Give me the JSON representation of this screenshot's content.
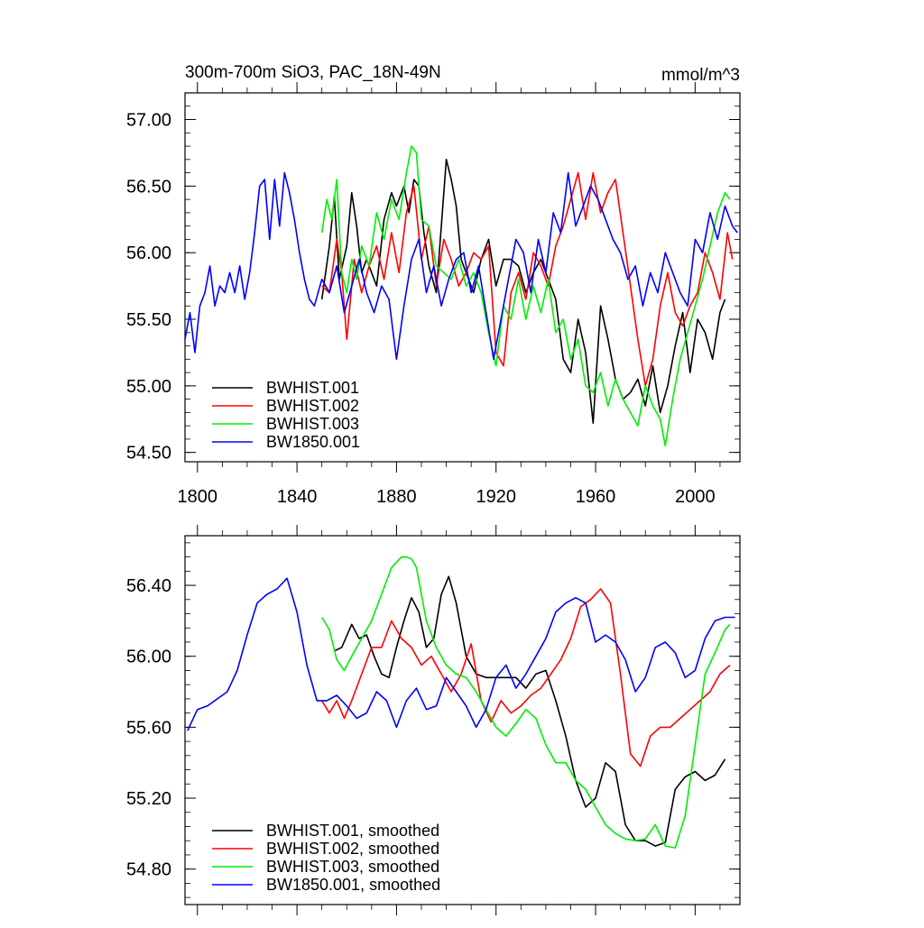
{
  "chart_data": [
    {
      "type": "line",
      "title": "300m-700m SiO3, PAC_18N-49N",
      "units": "mmol/m^3",
      "xlim": [
        1795,
        2018
      ],
      "ylim": [
        54.43,
        57.2
      ],
      "x_ticks": [
        "1800",
        "1840",
        "1880",
        "1920",
        "1960",
        "2000"
      ],
      "x_tick_values": [
        1800,
        1840,
        1880,
        1920,
        1960,
        2000
      ],
      "y_ticks": [
        "54.50",
        "55.00",
        "55.50",
        "56.00",
        "56.50",
        "57.00"
      ],
      "y_tick_values": [
        54.5,
        55.0,
        55.5,
        56.0,
        56.5,
        57.0
      ],
      "legend": {
        "position": "bottom-left",
        "entries": [
          "BWHIST.001",
          "BWHIST.002",
          "BWHIST.003",
          "BW1850.001"
        ]
      },
      "series": [
        {
          "name": "BWHIST.001",
          "color": "#000000",
          "x": [
            1850,
            1853,
            1855,
            1857,
            1860,
            1862,
            1864,
            1866,
            1868,
            1870,
            1872,
            1875,
            1878,
            1880,
            1883,
            1885,
            1887,
            1889,
            1891,
            1893,
            1896,
            1898,
            1900,
            1902,
            1904,
            1906,
            1908,
            1911,
            1914,
            1917,
            1920,
            1923,
            1926,
            1929,
            1932,
            1935,
            1938,
            1941,
            1944,
            1947,
            1950,
            1953,
            1956,
            1959,
            1962,
            1965,
            1968,
            1971,
            1974,
            1977,
            1980,
            1983,
            1986,
            1989,
            1992,
            1995,
            1998,
            2001,
            2004,
            2007,
            2010,
            2012
          ],
          "y": [
            55.65,
            56.05,
            56.42,
            55.8,
            56.05,
            56.45,
            56.2,
            55.85,
            55.95,
            55.85,
            55.75,
            56.25,
            56.45,
            56.35,
            56.5,
            56.3,
            56.55,
            56.5,
            56.15,
            55.9,
            55.7,
            56.2,
            56.7,
            56.55,
            56.35,
            55.95,
            55.85,
            55.7,
            55.95,
            56.1,
            55.75,
            55.95,
            55.95,
            55.9,
            55.7,
            55.85,
            55.95,
            55.8,
            55.65,
            55.2,
            55.1,
            55.5,
            55.25,
            54.72,
            55.6,
            55.35,
            55.05,
            54.9,
            54.95,
            55.05,
            54.85,
            55.15,
            54.8,
            55.0,
            55.3,
            55.55,
            55.1,
            55.5,
            55.4,
            55.2,
            55.55,
            55.65
          ]
        },
        {
          "name": "BWHIST.002",
          "color": "#ff0000",
          "x": [
            1850,
            1853,
            1856,
            1858,
            1860,
            1863,
            1866,
            1869,
            1872,
            1875,
            1878,
            1881,
            1884,
            1887,
            1890,
            1893,
            1896,
            1899,
            1902,
            1905,
            1908,
            1911,
            1914,
            1917,
            1920,
            1923,
            1926,
            1929,
            1932,
            1935,
            1938,
            1941,
            1944,
            1947,
            1950,
            1953,
            1956,
            1959,
            1962,
            1965,
            1968,
            1971,
            1974,
            1977,
            1980,
            1983,
            1986,
            1989,
            1992,
            1995,
            1998,
            2001,
            2004,
            2007,
            2010,
            2013,
            2015
          ],
          "y": [
            55.75,
            55.7,
            56.1,
            55.85,
            55.35,
            55.95,
            55.7,
            55.9,
            56.05,
            55.8,
            56.15,
            55.85,
            56.3,
            56.5,
            55.95,
            56.2,
            55.75,
            56.1,
            55.95,
            55.75,
            55.85,
            56.0,
            55.95,
            56.05,
            55.25,
            55.15,
            55.7,
            55.85,
            55.65,
            56.0,
            55.9,
            55.75,
            56.05,
            56.2,
            56.4,
            56.6,
            56.25,
            56.6,
            56.3,
            56.45,
            56.55,
            56.15,
            55.75,
            55.35,
            55.0,
            55.2,
            55.6,
            55.85,
            55.55,
            55.45,
            55.6,
            55.7,
            56.0,
            55.85,
            55.65,
            56.15,
            55.95
          ]
        },
        {
          "name": "BWHIST.003",
          "color": "#00ee00",
          "x": [
            1850,
            1852,
            1854,
            1856,
            1858,
            1860,
            1862,
            1864,
            1866,
            1869,
            1872,
            1875,
            1878,
            1881,
            1884,
            1886,
            1888,
            1890,
            1893,
            1896,
            1899,
            1902,
            1905,
            1908,
            1911,
            1914,
            1917,
            1920,
            1923,
            1926,
            1929,
            1932,
            1935,
            1938,
            1941,
            1944,
            1947,
            1950,
            1953,
            1956,
            1959,
            1962,
            1965,
            1968,
            1971,
            1974,
            1977,
            1980,
            1983,
            1986,
            1988,
            1991,
            1994,
            1997,
            2000,
            2003,
            2006,
            2009,
            2012,
            2014
          ],
          "y": [
            56.15,
            56.4,
            56.25,
            56.55,
            55.85,
            55.7,
            55.95,
            55.8,
            56.05,
            55.9,
            56.3,
            56.1,
            56.4,
            56.25,
            56.6,
            56.8,
            56.75,
            56.25,
            56.2,
            55.9,
            55.85,
            55.8,
            55.95,
            55.75,
            55.85,
            55.7,
            55.4,
            55.15,
            55.6,
            55.5,
            55.8,
            55.5,
            55.75,
            55.55,
            55.8,
            55.4,
            55.5,
            55.2,
            55.35,
            55.0,
            54.95,
            55.1,
            54.85,
            55.05,
            54.9,
            54.8,
            54.7,
            55.0,
            54.85,
            54.75,
            54.55,
            54.9,
            55.2,
            55.4,
            55.6,
            55.8,
            56.05,
            56.3,
            56.45,
            56.4
          ]
        },
        {
          "name": "BW1850.001",
          "color": "#0000ff",
          "x": [
            1795,
            1797,
            1799,
            1801,
            1803,
            1805,
            1807,
            1809,
            1811,
            1813,
            1815,
            1817,
            1819,
            1821,
            1823,
            1825,
            1827,
            1829,
            1831,
            1833,
            1835,
            1837,
            1839,
            1841,
            1843,
            1845,
            1847,
            1850,
            1853,
            1856,
            1859,
            1862,
            1865,
            1868,
            1871,
            1874,
            1877,
            1880,
            1883,
            1886,
            1889,
            1892,
            1895,
            1898,
            1901,
            1904,
            1907,
            1910,
            1913,
            1916,
            1919,
            1922,
            1925,
            1928,
            1931,
            1934,
            1937,
            1940,
            1943,
            1946,
            1949,
            1952,
            1955,
            1958,
            1961,
            1964,
            1967,
            1970,
            1973,
            1976,
            1979,
            1982,
            1985,
            1988,
            1991,
            1994,
            1997,
            2000,
            2003,
            2006,
            2009,
            2012,
            2015,
            2017
          ],
          "y": [
            55.35,
            55.55,
            55.25,
            55.6,
            55.7,
            55.9,
            55.6,
            55.75,
            55.7,
            55.85,
            55.7,
            55.9,
            55.65,
            55.85,
            56.15,
            56.5,
            56.55,
            56.1,
            56.55,
            56.2,
            56.6,
            56.45,
            56.25,
            56.0,
            55.8,
            55.65,
            55.6,
            55.8,
            55.7,
            55.9,
            55.55,
            55.75,
            55.95,
            55.7,
            55.55,
            55.75,
            55.65,
            55.2,
            55.6,
            55.95,
            56.1,
            55.7,
            55.9,
            55.6,
            55.8,
            55.95,
            56.0,
            55.7,
            55.9,
            55.55,
            55.2,
            55.5,
            55.8,
            56.1,
            56.0,
            55.7,
            56.1,
            55.85,
            56.3,
            56.15,
            56.6,
            56.2,
            56.35,
            56.5,
            56.4,
            56.25,
            56.1,
            56.0,
            55.8,
            55.9,
            55.6,
            55.85,
            55.7,
            56.0,
            55.85,
            55.7,
            55.6,
            56.1,
            56.0,
            56.3,
            56.1,
            56.35,
            56.2,
            56.15
          ]
        }
      ]
    },
    {
      "type": "line",
      "title": "",
      "xlim": [
        1795,
        2018
      ],
      "ylim": [
        54.6,
        56.68
      ],
      "x_tick_values": [
        1800,
        1840,
        1880,
        1920,
        1960,
        2000
      ],
      "y_ticks": [
        "54.80",
        "55.20",
        "55.60",
        "56.00",
        "56.40"
      ],
      "y_tick_values": [
        54.8,
        55.2,
        55.6,
        56.0,
        56.4
      ],
      "legend": {
        "position": "bottom-left",
        "entries": [
          "BWHIST.001, smoothed",
          "BWHIST.002, smoothed",
          "BWHIST.003, smoothed",
          "BW1850.001, smoothed"
        ]
      },
      "series": [
        {
          "name": "BWHIST.001, smoothed",
          "color": "#000000",
          "x": [
            1855,
            1858,
            1862,
            1865,
            1868,
            1871,
            1874,
            1877,
            1880,
            1883,
            1886,
            1889,
            1892,
            1895,
            1898,
            1901,
            1904,
            1908,
            1912,
            1916,
            1920,
            1924,
            1928,
            1932,
            1936,
            1940,
            1944,
            1948,
            1952,
            1956,
            1960,
            1964,
            1968,
            1972,
            1976,
            1980,
            1984,
            1988,
            1992,
            1996,
            2000,
            2004,
            2008,
            2012
          ],
          "y": [
            56.03,
            56.05,
            56.18,
            56.1,
            56.12,
            56.0,
            55.9,
            55.88,
            56.05,
            56.2,
            56.33,
            56.25,
            56.05,
            56.1,
            56.35,
            56.45,
            56.3,
            56.0,
            55.9,
            55.88,
            55.88,
            55.88,
            55.88,
            55.82,
            55.9,
            55.92,
            55.75,
            55.55,
            55.3,
            55.15,
            55.2,
            55.4,
            55.35,
            55.05,
            54.96,
            54.96,
            54.93,
            54.95,
            55.25,
            55.32,
            55.35,
            55.3,
            55.33,
            55.42
          ]
        },
        {
          "name": "BWHIST.002, smoothed",
          "color": "#ff0000",
          "x": [
            1850,
            1853,
            1856,
            1859,
            1862,
            1866,
            1870,
            1874,
            1878,
            1882,
            1886,
            1890,
            1894,
            1898,
            1902,
            1906,
            1910,
            1914,
            1918,
            1922,
            1926,
            1930,
            1934,
            1938,
            1942,
            1946,
            1950,
            1954,
            1958,
            1962,
            1966,
            1970,
            1974,
            1978,
            1982,
            1986,
            1990,
            1994,
            1998,
            2002,
            2006,
            2010,
            2014
          ],
          "y": [
            55.75,
            55.68,
            55.75,
            55.65,
            55.75,
            55.9,
            56.05,
            56.05,
            56.2,
            56.1,
            56.05,
            55.95,
            56.0,
            55.9,
            55.8,
            55.9,
            56.07,
            55.75,
            55.63,
            55.75,
            55.68,
            55.72,
            55.78,
            55.82,
            55.9,
            55.98,
            56.1,
            56.28,
            56.32,
            56.38,
            56.3,
            55.9,
            55.45,
            55.38,
            55.55,
            55.6,
            55.6,
            55.65,
            55.7,
            55.75,
            55.8,
            55.9,
            55.95
          ]
        },
        {
          "name": "BWHIST.003, smoothed",
          "color": "#00ee00",
          "x": [
            1850,
            1853,
            1856,
            1859,
            1862,
            1866,
            1870,
            1874,
            1878,
            1882,
            1884,
            1886,
            1888,
            1892,
            1896,
            1900,
            1904,
            1908,
            1912,
            1916,
            1920,
            1924,
            1928,
            1932,
            1936,
            1940,
            1944,
            1948,
            1952,
            1956,
            1960,
            1964,
            1968,
            1972,
            1976,
            1980,
            1984,
            1988,
            1992,
            1996,
            2000,
            2004,
            2008,
            2012,
            2014
          ],
          "y": [
            56.22,
            56.15,
            55.98,
            55.92,
            56.0,
            56.1,
            56.2,
            56.35,
            56.5,
            56.56,
            56.56,
            56.55,
            56.5,
            56.2,
            56.05,
            55.95,
            55.9,
            55.88,
            55.8,
            55.7,
            55.6,
            55.55,
            55.62,
            55.7,
            55.65,
            55.5,
            55.4,
            55.4,
            55.3,
            55.25,
            55.15,
            55.05,
            55.0,
            54.97,
            54.96,
            54.97,
            55.05,
            54.93,
            54.92,
            55.1,
            55.5,
            55.9,
            56.02,
            56.15,
            56.18
          ]
        },
        {
          "name": "BW1850.001, smoothed",
          "color": "#0000ff",
          "x": [
            1796,
            1800,
            1804,
            1808,
            1812,
            1816,
            1820,
            1824,
            1828,
            1832,
            1836,
            1840,
            1844,
            1848,
            1852,
            1856,
            1860,
            1864,
            1868,
            1872,
            1876,
            1880,
            1884,
            1888,
            1892,
            1896,
            1900,
            1904,
            1908,
            1912,
            1916,
            1920,
            1924,
            1928,
            1932,
            1936,
            1940,
            1944,
            1948,
            1952,
            1956,
            1960,
            1964,
            1968,
            1972,
            1976,
            1980,
            1984,
            1988,
            1992,
            1996,
            2000,
            2004,
            2008,
            2012,
            2016
          ],
          "y": [
            55.58,
            55.7,
            55.72,
            55.76,
            55.8,
            55.92,
            56.12,
            56.3,
            56.35,
            56.38,
            56.44,
            56.25,
            55.95,
            55.75,
            55.75,
            55.78,
            55.72,
            55.65,
            55.68,
            55.8,
            55.75,
            55.6,
            55.75,
            55.82,
            55.7,
            55.72,
            55.88,
            55.8,
            55.72,
            55.6,
            55.7,
            55.88,
            55.95,
            55.82,
            55.9,
            56.0,
            56.1,
            56.25,
            56.3,
            56.33,
            56.3,
            56.08,
            56.12,
            56.08,
            55.98,
            55.8,
            55.88,
            56.05,
            56.08,
            56.02,
            55.88,
            55.92,
            56.1,
            56.2,
            56.22,
            56.22
          ]
        }
      ]
    }
  ]
}
